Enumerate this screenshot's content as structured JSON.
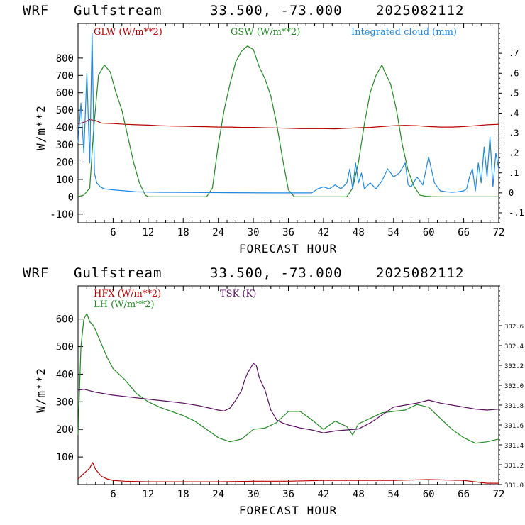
{
  "charts": [
    {
      "header": {
        "model": "WRF",
        "domain": "Gulfstream",
        "coords": "33.500, -73.000",
        "run": "2025082112"
      },
      "xlabel": "FORECAST HOUR",
      "ylabel": "W/m**2",
      "legend": [
        {
          "label": "GLW (W/m**2)",
          "color": "#bb0000"
        },
        {
          "label": "GSW (W/m**2)",
          "color": "#228b22"
        },
        {
          "label": "Integrated cloud (mm)",
          "color": "#1e88e5"
        }
      ]
    },
    {
      "header": {
        "model": "WRF",
        "domain": "Gulfstream",
        "coords": "33.500, -73.000",
        "run": "2025082112"
      },
      "xlabel": "FORECAST HOUR",
      "ylabel": "W/m**2",
      "legend": [
        {
          "label": "HFX (W/m**2)",
          "color": "#bb0000"
        },
        {
          "label": "LH  (W/m**2)",
          "color": "#228b22"
        },
        {
          "label": "TSK (K)",
          "color": "#5a1060"
        }
      ]
    }
  ],
  "chart_data": [
    {
      "type": "line",
      "xlabel": "FORECAST HOUR",
      "ylabel": "W/m**2",
      "xlim": [
        0,
        72
      ],
      "ylim": [
        -150,
        1000
      ],
      "y2lim": [
        -0.15,
        0.85
      ],
      "xticks": [
        6,
        12,
        18,
        24,
        30,
        36,
        42,
        48,
        54,
        60,
        66,
        72
      ],
      "yticks": [
        -100,
        0,
        100,
        200,
        300,
        400,
        500,
        600,
        700,
        800
      ],
      "y2ticks": [
        "-.1",
        "0",
        ".1",
        ".2",
        ".3",
        ".4",
        ".5",
        ".6",
        ".7"
      ],
      "series": [
        {
          "name": "GLW (W/m**2)",
          "color": "#bb0000",
          "axis": "left",
          "x": [
            0,
            1,
            2,
            3,
            4,
            6,
            8,
            10,
            12,
            14,
            16,
            18,
            20,
            22,
            24,
            26,
            28,
            30,
            32,
            34,
            36,
            38,
            40,
            42,
            44,
            46,
            48,
            50,
            52,
            54,
            56,
            58,
            60,
            62,
            64,
            66,
            68,
            70,
            72
          ],
          "y": [
            420,
            430,
            445,
            440,
            425,
            422,
            418,
            415,
            413,
            410,
            408,
            407,
            405,
            404,
            402,
            402,
            400,
            400,
            398,
            397,
            395,
            393,
            393,
            393,
            392,
            395,
            398,
            400,
            405,
            410,
            412,
            410,
            405,
            402,
            402,
            405,
            410,
            415,
            418
          ]
        },
        {
          "name": "GSW (W/m**2)",
          "color": "#228b22",
          "axis": "left",
          "x": [
            0,
            1,
            2,
            2.7,
            3.5,
            4.5,
            5.5,
            6.5,
            7.5,
            8.5,
            9.5,
            10.5,
            11.5,
            12,
            22,
            23,
            24,
            25,
            26,
            27,
            28,
            29,
            30,
            31,
            32,
            33,
            34,
            35,
            36,
            37,
            46,
            47,
            48,
            49,
            50,
            51,
            52,
            52.5,
            53.5,
            54.5,
            55.5,
            56.5,
            57.5,
            58.5,
            59.5,
            60.5,
            61.5,
            72
          ],
          "y": [
            0,
            10,
            50,
            400,
            700,
            760,
            720,
            600,
            500,
            350,
            200,
            80,
            10,
            0,
            0,
            50,
            300,
            500,
            650,
            780,
            840,
            870,
            850,
            750,
            680,
            580,
            420,
            220,
            40,
            0,
            0,
            50,
            200,
            420,
            600,
            700,
            760,
            720,
            650,
            500,
            300,
            150,
            60,
            10,
            3,
            1,
            0,
            0
          ]
        },
        {
          "name": "Integrated cloud (mm)",
          "color": "#1e88e5",
          "axis": "right",
          "x": [
            0,
            0.5,
            1,
            1.5,
            2,
            2.4,
            2.8,
            3.2,
            3.8,
            4.5,
            6,
            8,
            10,
            14,
            20,
            26,
            34,
            40,
            41,
            42,
            43,
            44,
            45,
            46,
            46.5,
            47,
            47.5,
            48,
            48.5,
            49,
            50,
            51,
            52,
            53,
            54,
            55,
            56,
            56.5,
            57,
            58,
            59,
            60,
            61,
            62,
            63,
            64,
            65,
            66,
            66.5,
            67,
            67.5,
            68,
            68.5,
            69,
            69.5,
            70,
            70.5,
            71,
            71.5,
            72
          ],
          "y": [
            0.25,
            0.45,
            0.2,
            0.6,
            0.15,
            0.8,
            0.1,
            0.05,
            0.03,
            0.02,
            0.015,
            0.01,
            0.005,
            0.003,
            0.002,
            0.001,
            0.0,
            0.0,
            0.02,
            0.03,
            0.02,
            0.04,
            0.02,
            0.05,
            0.12,
            0.02,
            0.15,
            0.05,
            0.1,
            0.02,
            0.05,
            0.02,
            0.06,
            0.12,
            0.08,
            0.1,
            0.15,
            0.04,
            0.03,
            0.08,
            0.04,
            0.18,
            0.05,
            0.01,
            0.005,
            0.003,
            0.005,
            0.01,
            0.02,
            0.08,
            0.12,
            0.01,
            0.15,
            0.05,
            0.23,
            0.08,
            0.28,
            0.03,
            0.2,
            0.12
          ]
        }
      ]
    },
    {
      "type": "line",
      "xlabel": "FORECAST HOUR",
      "ylabel": "W/m**2",
      "xlim": [
        0,
        72
      ],
      "ylim": [
        0,
        720
      ],
      "y2lim": [
        301.0,
        303.0
      ],
      "xticks": [
        6,
        12,
        18,
        24,
        30,
        36,
        42,
        48,
        54,
        60,
        66,
        72
      ],
      "yticks": [
        100,
        200,
        300,
        400,
        500,
        600
      ],
      "y2ticks": [
        "302.6",
        "302.4",
        "302.2",
        "302.0",
        "301.8",
        "301.6",
        "301.4",
        "301.2",
        "301.0"
      ],
      "series": [
        {
          "name": "HFX (W/m**2)",
          "color": "#bb0000",
          "axis": "left",
          "x": [
            0,
            1,
            2,
            2.5,
            3,
            4,
            5,
            6,
            8,
            12,
            18,
            24,
            30,
            36,
            42,
            48,
            54,
            60,
            66,
            70,
            72
          ],
          "y": [
            20,
            40,
            60,
            80,
            55,
            30,
            20,
            15,
            12,
            10,
            10,
            10,
            12,
            12,
            15,
            15,
            15,
            18,
            15,
            5,
            5
          ]
        },
        {
          "name": "LH  (W/m**2)",
          "color": "#228b22",
          "axis": "left",
          "x": [
            0,
            0.5,
            1,
            1.5,
            2,
            2.5,
            3,
            4,
            5,
            6,
            8,
            10,
            12,
            14,
            16,
            18,
            20,
            22,
            24,
            26,
            28,
            30,
            32,
            34,
            36,
            38,
            40,
            42,
            44,
            46,
            47,
            48,
            50,
            52,
            54,
            56,
            58,
            60,
            62,
            64,
            66,
            68,
            70,
            72
          ],
          "y": [
            180,
            500,
            600,
            620,
            590,
            580,
            560,
            510,
            460,
            420,
            380,
            330,
            300,
            280,
            265,
            250,
            230,
            200,
            170,
            155,
            165,
            200,
            205,
            225,
            265,
            265,
            235,
            200,
            230,
            210,
            180,
            220,
            240,
            260,
            265,
            270,
            290,
            280,
            240,
            200,
            170,
            150,
            155,
            165
          ]
        },
        {
          "name": "TSK (K)",
          "color": "#5a1060",
          "axis": "right",
          "x": [
            0,
            1,
            3,
            6,
            9,
            12,
            15,
            18,
            21,
            24,
            25,
            26,
            27,
            28,
            28.5,
            29,
            30,
            30.5,
            31,
            32,
            33,
            34,
            35,
            36,
            38,
            40,
            42,
            44,
            46,
            48,
            50,
            52,
            54,
            56,
            58,
            60,
            62,
            64,
            66,
            68,
            70,
            72
          ],
          "y": [
            301.95,
            301.96,
            301.93,
            301.9,
            301.88,
            301.86,
            301.84,
            301.82,
            301.79,
            301.75,
            301.74,
            301.77,
            301.85,
            301.95,
            302.05,
            302.12,
            302.22,
            302.2,
            302.08,
            301.95,
            301.75,
            301.65,
            301.62,
            301.6,
            301.57,
            301.55,
            301.52,
            301.54,
            301.55,
            301.56,
            301.62,
            301.7,
            301.78,
            301.8,
            301.82,
            301.85,
            301.82,
            301.8,
            301.78,
            301.76,
            301.75,
            301.76
          ]
        }
      ]
    }
  ]
}
